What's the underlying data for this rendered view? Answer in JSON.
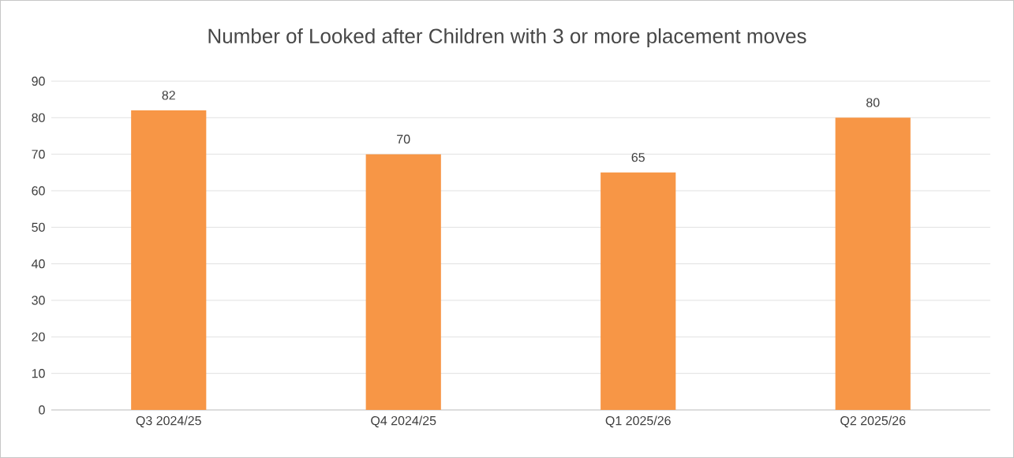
{
  "chart_data": {
    "type": "bar",
    "title": "Number of Looked after Children with 3 or more placement moves",
    "categories": [
      "Q3 2024/25",
      "Q4 2024/25",
      "Q1 2025/26",
      "Q2 2025/26"
    ],
    "values": [
      82,
      70,
      65,
      80
    ],
    "color": "#f79646",
    "ylim": [
      0,
      90
    ],
    "yticks": [
      0,
      10,
      20,
      30,
      40,
      50,
      60,
      70,
      80,
      90
    ],
    "grid": "y",
    "data_labels": true
  }
}
